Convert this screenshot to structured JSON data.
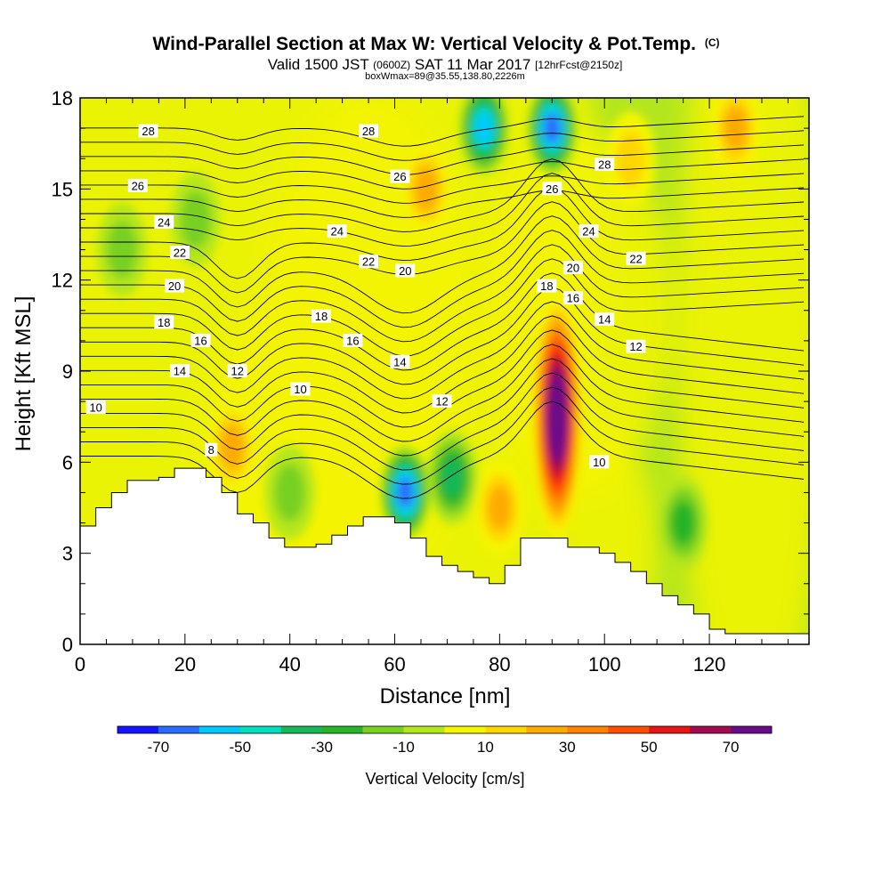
{
  "header": {
    "title_main": "Wind-Parallel Section at Max W: Vertical Velocity & Pot.Temp.",
    "title_tag": "(C)",
    "valid_a": "Valid 1500 JST",
    "valid_b": "(0600Z)",
    "valid_c": "SAT 11 Mar 2017",
    "valid_d": "[12hrFcst@2150z]",
    "box_line": "boxWmax=89@35.55,138.80,2226m"
  },
  "chart_data": {
    "type": "heatmap",
    "xlabel": "Distance [nm]",
    "ylabel": "Height [Kft MSL]",
    "xlim": [
      0,
      139
    ],
    "ylim": [
      0,
      18
    ],
    "x_ticks": [
      "0",
      "20",
      "40",
      "60",
      "80",
      "100",
      "120"
    ],
    "x_tick_values": [
      0,
      20,
      40,
      60,
      80,
      100,
      120
    ],
    "y_ticks": [
      "0",
      "3",
      "6",
      "9",
      "12",
      "15",
      "18"
    ],
    "y_tick_values": [
      0,
      3,
      6,
      9,
      12,
      15,
      18
    ],
    "colorbar": {
      "label": "Vertical Velocity [cm/s]",
      "tick_labels": [
        "-70",
        "-50",
        "-30",
        "-10",
        "10",
        "30",
        "50",
        "70"
      ],
      "bounds": [
        -80,
        -70,
        -60,
        -50,
        -40,
        -30,
        -20,
        -10,
        0,
        10,
        20,
        30,
        40,
        50,
        60,
        70,
        80
      ],
      "colors": [
        "#1414ff",
        "#2a6cff",
        "#00c8ff",
        "#00e0c0",
        "#18b858",
        "#28b428",
        "#78d020",
        "#b4e61e",
        "#f5f500",
        "#ffd700",
        "#ffaa00",
        "#ff8200",
        "#ff4e00",
        "#e61414",
        "#a00a50",
        "#6a0a8a"
      ]
    },
    "vertical_velocity_features": [
      {
        "kind": "updraft",
        "x": 91,
        "y": 7.5,
        "peak": 89
      },
      {
        "kind": "updraft",
        "x": 80,
        "y": 4.5,
        "peak": 30
      },
      {
        "kind": "updraft",
        "x": 29,
        "y": 6.5,
        "peak": 25
      },
      {
        "kind": "updraft",
        "x": 66,
        "y": 15,
        "peak": 28
      },
      {
        "kind": "updraft",
        "x": 105,
        "y": 16,
        "peak": 22
      },
      {
        "kind": "updraft",
        "x": 125,
        "y": 17,
        "peak": 25
      },
      {
        "kind": "downdraft",
        "x": 62,
        "y": 5,
        "peak": -70
      },
      {
        "kind": "downdraft",
        "x": 71,
        "y": 5.5,
        "peak": -42
      },
      {
        "kind": "downdraft",
        "x": 77,
        "y": 17,
        "peak": -55
      },
      {
        "kind": "downdraft",
        "x": 90,
        "y": 17,
        "peak": -65
      },
      {
        "kind": "downdraft",
        "x": 8,
        "y": 13,
        "peak": -22
      },
      {
        "kind": "downdraft",
        "x": 22,
        "y": 14,
        "peak": -15
      },
      {
        "kind": "downdraft",
        "x": 115,
        "y": 4,
        "peak": -25
      },
      {
        "kind": "downdraft",
        "x": 40,
        "y": 5,
        "peak": -20
      }
    ],
    "terrain_kft": {
      "x": [
        0,
        3,
        6,
        9,
        12,
        15,
        18,
        21,
        24,
        27,
        30,
        33,
        36,
        39,
        42,
        45,
        48,
        51,
        54,
        57,
        60,
        63,
        66,
        69,
        72,
        75,
        78,
        81,
        84,
        87,
        90,
        93,
        96,
        99,
        102,
        105,
        108,
        111,
        114,
        117,
        120,
        123,
        126,
        129,
        132,
        135,
        139
      ],
      "top": [
        3.9,
        4.5,
        5.0,
        5.4,
        5.4,
        5.5,
        5.8,
        5.8,
        5.5,
        5.0,
        4.3,
        4.0,
        3.5,
        3.2,
        3.2,
        3.3,
        3.6,
        3.9,
        4.2,
        4.2,
        4.0,
        3.5,
        2.9,
        2.6,
        2.4,
        2.2,
        2.0,
        2.6,
        3.5,
        3.5,
        3.5,
        3.2,
        3.2,
        3.0,
        2.7,
        2.4,
        2.0,
        1.6,
        1.3,
        1.0,
        0.5,
        0.35,
        0.35,
        0.35,
        0.35,
        0.35,
        0.35
      ]
    },
    "potential_temperature_contour_labels": [
      {
        "value": "28",
        "x": 13,
        "y": 16.9
      },
      {
        "value": "28",
        "x": 55,
        "y": 16.9
      },
      {
        "value": "28",
        "x": 100,
        "y": 15.8
      },
      {
        "value": "26",
        "x": 11,
        "y": 15.1
      },
      {
        "value": "26",
        "x": 61,
        "y": 15.4
      },
      {
        "value": "26",
        "x": 90,
        "y": 15.0
      },
      {
        "value": "24",
        "x": 16,
        "y": 13.9
      },
      {
        "value": "24",
        "x": 49,
        "y": 13.6
      },
      {
        "value": "24",
        "x": 97,
        "y": 13.6
      },
      {
        "value": "22",
        "x": 19,
        "y": 12.9
      },
      {
        "value": "22",
        "x": 55,
        "y": 12.6
      },
      {
        "value": "22",
        "x": 106,
        "y": 12.7
      },
      {
        "value": "20",
        "x": 18,
        "y": 11.8
      },
      {
        "value": "20",
        "x": 62,
        "y": 12.3
      },
      {
        "value": "20",
        "x": 94,
        "y": 12.4
      },
      {
        "value": "18",
        "x": 16,
        "y": 10.6
      },
      {
        "value": "18",
        "x": 46,
        "y": 10.8
      },
      {
        "value": "18",
        "x": 89,
        "y": 11.8
      },
      {
        "value": "16",
        "x": 23,
        "y": 10.0
      },
      {
        "value": "16",
        "x": 52,
        "y": 10.0
      },
      {
        "value": "16",
        "x": 94,
        "y": 11.4
      },
      {
        "value": "14",
        "x": 19,
        "y": 9.0
      },
      {
        "value": "14",
        "x": 61,
        "y": 9.3
      },
      {
        "value": "14",
        "x": 100,
        "y": 10.7
      },
      {
        "value": "12",
        "x": 30,
        "y": 9.0
      },
      {
        "value": "12",
        "x": 69,
        "y": 8.0
      },
      {
        "value": "12",
        "x": 106,
        "y": 9.8
      },
      {
        "value": "10",
        "x": 3,
        "y": 7.8
      },
      {
        "value": "10",
        "x": 42,
        "y": 8.4
      },
      {
        "value": "10",
        "x": 99,
        "y": 6.0
      },
      {
        "value": "8",
        "x": 25,
        "y": 6.4
      }
    ],
    "potential_temperature_levels": [
      6,
      7,
      8,
      9,
      10,
      11,
      12,
      13,
      14,
      15,
      16,
      17,
      18,
      19,
      20,
      21,
      22,
      23,
      24,
      25,
      26,
      27,
      28,
      29
    ]
  }
}
